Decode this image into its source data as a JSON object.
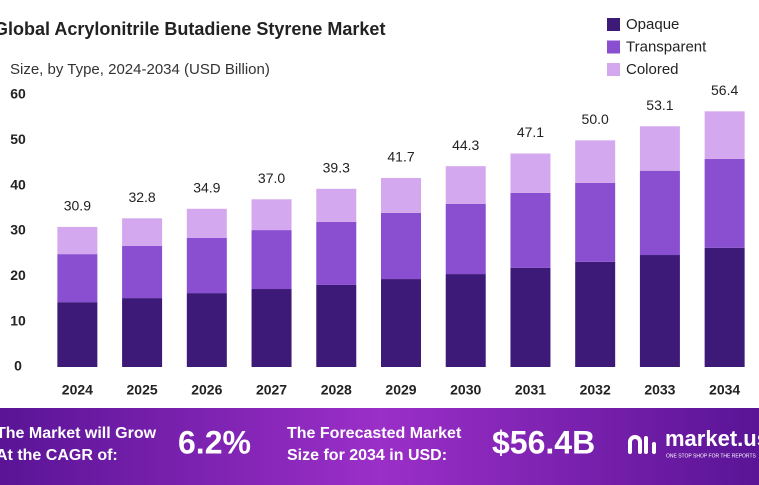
{
  "chart_data": {
    "type": "stacked_bar",
    "title": "Global Acrylonitrile Butadiene Styrene Market",
    "subtitle": "Size, by Type, 2024-2034 (USD Billion)",
    "categories": [
      "2024",
      "2025",
      "2026",
      "2027",
      "2028",
      "2029",
      "2030",
      "2031",
      "2032",
      "2033",
      "2034"
    ],
    "series": [
      {
        "name": "Opaque",
        "color": "#3d1a78",
        "values": [
          14.3,
          15.2,
          16.3,
          17.2,
          18.1,
          19.4,
          20.5,
          21.9,
          23.2,
          24.7,
          26.3
        ]
      },
      {
        "name": "Transparent",
        "color": "#8a4fd0",
        "values": [
          10.6,
          11.5,
          12.2,
          13.0,
          13.9,
          14.6,
          15.5,
          16.5,
          17.4,
          18.6,
          19.6
        ]
      },
      {
        "name": "Colored",
        "color": "#d4a8ee",
        "values": [
          6.0,
          6.1,
          6.4,
          6.8,
          7.3,
          7.7,
          8.3,
          8.7,
          9.4,
          9.8,
          10.5
        ]
      }
    ],
    "totals": [
      30.9,
      32.8,
      34.9,
      37.0,
      39.3,
      41.7,
      44.3,
      47.1,
      50.0,
      53.1,
      56.4
    ],
    "totals_labels": [
      "30.9",
      "32.8",
      "34.9",
      "37.0",
      "39.3",
      "41.7",
      "44.3",
      "47.1",
      "50.0",
      "53.1",
      "56.4"
    ],
    "ylim": [
      0,
      60
    ],
    "yticks": [
      0,
      10,
      20,
      30,
      40,
      50,
      60
    ],
    "grid": false,
    "legend": "top-right"
  },
  "banner": {
    "cagr_text": [
      "The Market will Grow",
      "At the CAGR of:"
    ],
    "cagr_value": "6.2%",
    "forecast_text": [
      "The Forecasted Market",
      "Size for 2034 in USD:"
    ],
    "forecast_value": "$56.4B",
    "brand": "market.us",
    "tagline": "ONE STOP SHOP FOR THE REPORTS"
  }
}
